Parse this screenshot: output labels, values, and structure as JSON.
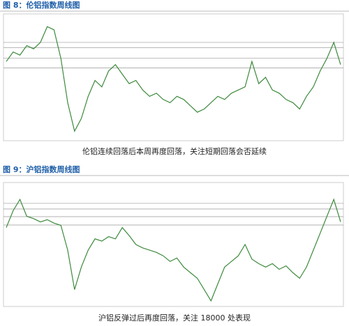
{
  "chart_data": [
    {
      "type": "line",
      "title": "图 8：伦铝指数周线图",
      "caption": "伦铝连续回落后本周再度回落，关注短期回落会否延续",
      "values": [
        2450,
        2600,
        2550,
        2700,
        2650,
        2750,
        3000,
        2950,
        2500,
        1800,
        1350,
        1550,
        1900,
        2150,
        2050,
        2300,
        2400,
        2250,
        2100,
        2150,
        2000,
        1900,
        1950,
        1850,
        1800,
        1900,
        1850,
        1750,
        1650,
        1700,
        1800,
        1900,
        1850,
        1950,
        2000,
        2050,
        2450,
        2100,
        2200,
        2000,
        1950,
        1850,
        1800,
        1700,
        1900,
        2050,
        2300,
        2500,
        2750,
        2400
      ],
      "color": "#3d8a3d",
      "ylim": [
        1200,
        3200
      ],
      "hlines": [
        2750,
        2670,
        2500,
        2350
      ]
    },
    {
      "type": "line",
      "title": "图 9：沪铝指数周线图",
      "caption": "沪铝反弹过后再度回落，关注 18000 处表现",
      "values": [
        18000,
        19500,
        20500,
        19000,
        18800,
        18500,
        18700,
        18400,
        18200,
        16000,
        12500,
        14500,
        16000,
        17000,
        16800,
        17200,
        17000,
        18000,
        17300,
        16500,
        16200,
        16000,
        15800,
        15500,
        15000,
        15300,
        14500,
        14000,
        13500,
        12500,
        11500,
        13000,
        14500,
        15000,
        15500,
        16500,
        15200,
        14800,
        14500,
        14800,
        14300,
        14600,
        14000,
        13500,
        14500,
        16000,
        17500,
        19000,
        20500,
        18500
      ],
      "color": "#3d8a3d",
      "ylim": [
        11000,
        22000
      ],
      "hlines": [
        20150,
        19650,
        18970,
        18230
      ]
    }
  ]
}
